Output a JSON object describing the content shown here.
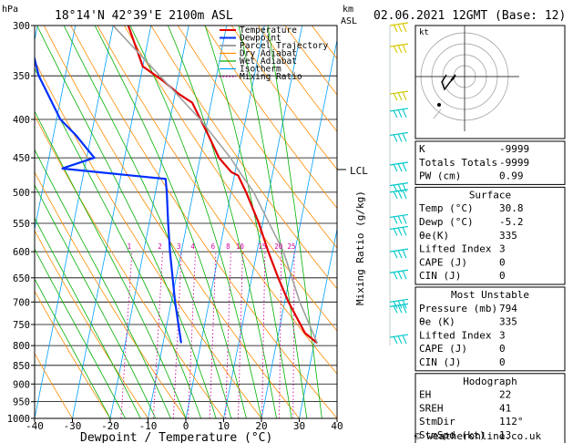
{
  "header": {
    "pressure_unit": "hPa",
    "station": "18°14'N  42°39'E  2100m  ASL",
    "height_unit_km": "km",
    "height_unit_asl": "ASL",
    "datetime": "02.06.2021  12GMT  (Base: 12)"
  },
  "footer": {
    "credit": "© weatheronline.co.uk"
  },
  "colors": {
    "temperature": "#e00000",
    "dewpoint": "#0030ff",
    "parcel": "#a0a0a0",
    "dry_adiabat": "#ff8c00",
    "wet_adiabat": "#00b000",
    "isotherm": "#00a0ff",
    "mixing_ratio": "#d000a0",
    "wind_barb": "#00c8c8"
  },
  "chart_data": {
    "type": "line",
    "xlabel": "Dewpoint / Temperature (°C)",
    "ylabel_right": "Mixing Ratio (g/kg)",
    "xlim": [
      -40,
      40
    ],
    "ylim": [
      1000,
      300
    ],
    "x_ticks": [
      -40,
      -30,
      -20,
      -10,
      0,
      10,
      20,
      30,
      40
    ],
    "pressure_levels": [
      300,
      350,
      400,
      450,
      500,
      550,
      600,
      650,
      700,
      750,
      800,
      850,
      900,
      950,
      1000
    ],
    "legend": [
      "Temperature",
      "Dewpoint",
      "Parcel Trajectory",
      "Dry Adiabat",
      "Wet Adiabat",
      "Isotherm",
      "Mixing Ratio"
    ],
    "mixing_ratio_labels": [
      "1",
      "2",
      "3",
      "4",
      "6",
      "8",
      "10",
      "15",
      "20",
      "25"
    ],
    "mixing_ratio_values": [
      1,
      2,
      3,
      4,
      6,
      8,
      10,
      15,
      20,
      25
    ],
    "lcl_label": "LCL",
    "lcl_pressure": 475,
    "series": [
      {
        "name": "Temperature",
        "points": [
          [
            794,
            30.8
          ],
          [
            770,
            27
          ],
          [
            700,
            21
          ],
          [
            650,
            17
          ],
          [
            600,
            13
          ],
          [
            550,
            9
          ],
          [
            500,
            4
          ],
          [
            475,
            1
          ],
          [
            470,
            -1
          ],
          [
            450,
            -5
          ],
          [
            420,
            -9
          ],
          [
            380,
            -15
          ],
          [
            370,
            -19
          ],
          [
            355,
            -24
          ],
          [
            340,
            -30
          ],
          [
            300,
            -36
          ]
        ]
      },
      {
        "name": "Dewpoint",
        "points": [
          [
            794,
            -5.2
          ],
          [
            700,
            -9
          ],
          [
            600,
            -13
          ],
          [
            550,
            -15
          ],
          [
            500,
            -17
          ],
          [
            480,
            -18
          ],
          [
            465,
            -46
          ],
          [
            450,
            -38
          ],
          [
            420,
            -44
          ],
          [
            400,
            -49
          ],
          [
            350,
            -57
          ],
          [
            300,
            -63
          ]
        ]
      },
      {
        "name": "Parcel Trajectory",
        "points": [
          [
            794,
            30.8
          ],
          [
            700,
            24
          ],
          [
            600,
            17
          ],
          [
            500,
            6
          ],
          [
            475,
            2
          ],
          [
            450,
            -2
          ],
          [
            400,
            -12
          ],
          [
            350,
            -25
          ],
          [
            300,
            -40
          ]
        ]
      }
    ],
    "wind_levels": [
      300,
      320,
      370,
      390,
      420,
      460,
      490,
      500,
      540,
      560,
      600,
      640,
      700,
      710,
      780
    ]
  },
  "indices": {
    "rows": [
      {
        "label": "K",
        "value": "-9999"
      },
      {
        "label": "Totals Totals",
        "value": "-9999"
      },
      {
        "label": "PW (cm)",
        "value": "0.99"
      }
    ]
  },
  "surface": {
    "title": "Surface",
    "rows": [
      {
        "label": "Temp (°C)",
        "value": "30.8"
      },
      {
        "label": "Dewp (°C)",
        "value": "-5.2"
      },
      {
        "label": "θe(K)",
        "value": "335"
      },
      {
        "label": "Lifted Index",
        "value": "3"
      },
      {
        "label": "CAPE (J)",
        "value": "0"
      },
      {
        "label": "CIN (J)",
        "value": "0"
      }
    ]
  },
  "most_unstable": {
    "title": "Most Unstable",
    "rows": [
      {
        "label": "Pressure (mb)",
        "value": "794"
      },
      {
        "label": "θe (K)",
        "value": "335"
      },
      {
        "label": "Lifted Index",
        "value": "3"
      },
      {
        "label": "CAPE (J)",
        "value": "0"
      },
      {
        "label": "CIN (J)",
        "value": "0"
      }
    ]
  },
  "hodograph_table": {
    "title": "Hodograph",
    "rows": [
      {
        "label": "EH",
        "value": "22"
      },
      {
        "label": "SREH",
        "value": "41"
      },
      {
        "label": "StmDir",
        "value": "112°"
      },
      {
        "label": "StmSpd (kt)",
        "value": "13"
      }
    ]
  },
  "hodograph": {
    "unit_label": "kt"
  }
}
